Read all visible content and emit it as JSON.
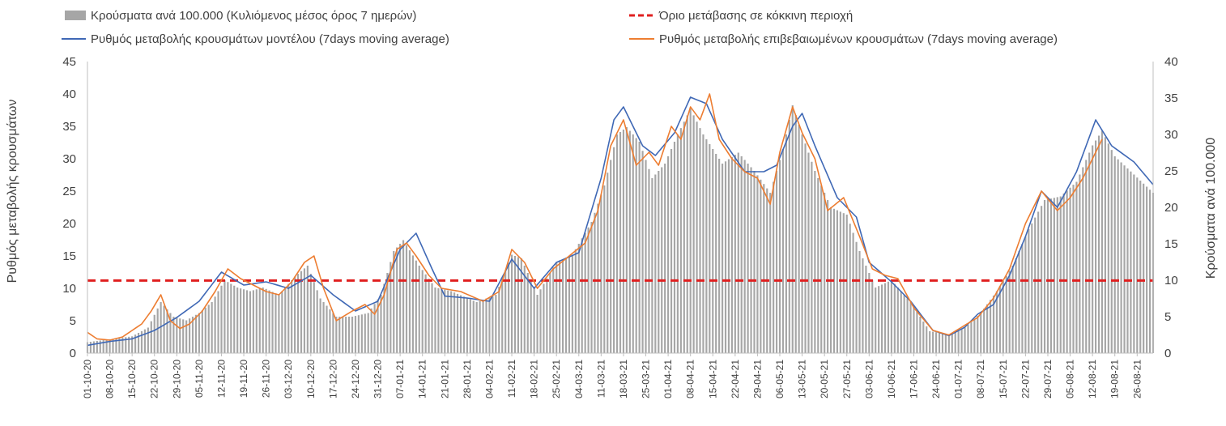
{
  "chart_data": {
    "type": "bar+line",
    "title": "",
    "ylabel_left": "Ρυθμός μεταβολής κρουσμάτων",
    "ylabel_right": "Κρούσματα ανά 100.000",
    "ylim_left": [
      0,
      45
    ],
    "yticks_left": [
      "0",
      "5",
      "10",
      "15",
      "20",
      "25",
      "30",
      "35",
      "40",
      "45"
    ],
    "ylim_right": [
      0,
      40
    ],
    "yticks_right": [
      "0",
      "5",
      "10",
      "15",
      "20",
      "25",
      "30",
      "35",
      "40"
    ],
    "x_tick_labels": [
      "01-10-20",
      "08-10-20",
      "15-10-20",
      "22-10-20",
      "29-10-20",
      "05-11-20",
      "12-11-20",
      "19-11-20",
      "26-11-20",
      "03-12-20",
      "10-12-20",
      "17-12-20",
      "24-12-20",
      "31-12-20",
      "07-01-21",
      "14-01-21",
      "21-01-21",
      "28-01-21",
      "04-02-21",
      "11-02-21",
      "18-02-21",
      "25-02-21",
      "04-03-21",
      "11-03-21",
      "18-03-21",
      "25-03-21",
      "01-04-21",
      "08-04-21",
      "15-04-21",
      "22-04-21",
      "29-04-21",
      "06-05-21",
      "13-05-21",
      "20-05-21",
      "27-05-21",
      "03-06-21",
      "10-06-21",
      "17-06-21",
      "24-06-21",
      "01-07-21",
      "08-07-21",
      "15-07-21",
      "22-07-21",
      "29-07-21",
      "05-08-21",
      "12-08-21",
      "19-08-21",
      "26-08-21"
    ],
    "x_start": "2020-10-01",
    "x_end": "2021-08-31",
    "grid": false,
    "legend_position": "top",
    "threshold": {
      "name": "Όριο μετάβασης σε κόκκινη περιοχή",
      "value_left_axis": 11.2,
      "color": "#e02020"
    },
    "series": [
      {
        "name": "Κρούσματα ανά 100.000 (Κυλιόμενος μέσος όρος 7 ημερών)",
        "kind": "bar",
        "axis": "right",
        "color": "#a6a6a6",
        "keypoints": [
          [
            "2020-10-01",
            1.5
          ],
          [
            "2020-10-08",
            1.9
          ],
          [
            "2020-10-15",
            2.3
          ],
          [
            "2020-10-20",
            3.5
          ],
          [
            "2020-10-24",
            7.0
          ],
          [
            "2020-10-28",
            5.0
          ],
          [
            "2020-11-01",
            4.5
          ],
          [
            "2020-11-05",
            5.5
          ],
          [
            "2020-11-09",
            7.0
          ],
          [
            "2020-11-13",
            10.0
          ],
          [
            "2020-11-17",
            9.0
          ],
          [
            "2020-11-21",
            8.5
          ],
          [
            "2020-11-25",
            9.0
          ],
          [
            "2020-11-30",
            8.0
          ],
          [
            "2020-12-05",
            10.5
          ],
          [
            "2020-12-09",
            12.0
          ],
          [
            "2020-12-13",
            7.5
          ],
          [
            "2020-12-18",
            5.0
          ],
          [
            "2020-12-23",
            5.0
          ],
          [
            "2020-12-28",
            5.5
          ],
          [
            "2021-01-01",
            8.0
          ],
          [
            "2021-01-05",
            14.0
          ],
          [
            "2021-01-08",
            15.5
          ],
          [
            "2021-01-13",
            12.0
          ],
          [
            "2021-01-18",
            9.0
          ],
          [
            "2021-01-23",
            8.5
          ],
          [
            "2021-01-31",
            7.0
          ],
          [
            "2021-02-06",
            8.0
          ],
          [
            "2021-02-11",
            13.5
          ],
          [
            "2021-02-14",
            13.0
          ],
          [
            "2021-02-19",
            8.0
          ],
          [
            "2021-02-25",
            12.5
          ],
          [
            "2021-03-02",
            13.5
          ],
          [
            "2021-03-08",
            18.0
          ],
          [
            "2021-03-12",
            23.0
          ],
          [
            "2021-03-16",
            30.0
          ],
          [
            "2021-03-19",
            31.0
          ],
          [
            "2021-03-23",
            29.0
          ],
          [
            "2021-03-27",
            24.0
          ],
          [
            "2021-03-31",
            26.0
          ],
          [
            "2021-04-04",
            30.0
          ],
          [
            "2021-04-08",
            33.5
          ],
          [
            "2021-04-12",
            30.0
          ],
          [
            "2021-04-18",
            26.0
          ],
          [
            "2021-04-23",
            27.5
          ],
          [
            "2021-04-28",
            25.0
          ],
          [
            "2021-05-03",
            22.0
          ],
          [
            "2021-05-07",
            28.0
          ],
          [
            "2021-05-10",
            34.0
          ],
          [
            "2021-05-13",
            30.0
          ],
          [
            "2021-05-17",
            25.0
          ],
          [
            "2021-05-22",
            20.0
          ],
          [
            "2021-05-27",
            19.0
          ],
          [
            "2021-05-31",
            14.0
          ],
          [
            "2021-06-05",
            9.0
          ],
          [
            "2021-06-10",
            10.0
          ],
          [
            "2021-06-16",
            7.0
          ],
          [
            "2021-06-22",
            3.0
          ],
          [
            "2021-06-28",
            2.6
          ],
          [
            "2021-07-03",
            3.5
          ],
          [
            "2021-07-08",
            5.5
          ],
          [
            "2021-07-13",
            8.5
          ],
          [
            "2021-07-18",
            12.0
          ],
          [
            "2021-07-23",
            17.0
          ],
          [
            "2021-07-28",
            21.0
          ],
          [
            "2021-08-02",
            21.5
          ],
          [
            "2021-08-07",
            23.5
          ],
          [
            "2021-08-12",
            28.5
          ],
          [
            "2021-08-15",
            30.5
          ],
          [
            "2021-08-19",
            27.0
          ],
          [
            "2021-08-25",
            24.5
          ],
          [
            "2021-08-31",
            22.0
          ]
        ]
      },
      {
        "name": "Ρυθμός μεταβολής κρουσμάτων μοντέλου (7days moving average)",
        "kind": "line",
        "axis": "left",
        "color": "#3f68b5",
        "keypoints": [
          [
            "2020-10-01",
            1.2
          ],
          [
            "2020-10-08",
            1.8
          ],
          [
            "2020-10-15",
            2.2
          ],
          [
            "2020-10-22",
            3.5
          ],
          [
            "2020-10-29",
            5.5
          ],
          [
            "2020-11-05",
            8.0
          ],
          [
            "2020-11-12",
            12.5
          ],
          [
            "2020-11-19",
            10.5
          ],
          [
            "2020-11-26",
            11.0
          ],
          [
            "2020-12-03",
            10.0
          ],
          [
            "2020-12-10",
            12.0
          ],
          [
            "2020-12-17",
            9.0
          ],
          [
            "2020-12-24",
            6.5
          ],
          [
            "2020-12-31",
            8.0
          ],
          [
            "2021-01-07",
            16.0
          ],
          [
            "2021-01-12",
            18.5
          ],
          [
            "2021-01-17",
            13.0
          ],
          [
            "2021-01-21",
            8.8
          ],
          [
            "2021-01-28",
            8.5
          ],
          [
            "2021-02-04",
            8.0
          ],
          [
            "2021-02-11",
            14.5
          ],
          [
            "2021-02-18",
            10.0
          ],
          [
            "2021-02-25",
            14.0
          ],
          [
            "2021-03-04",
            15.5
          ],
          [
            "2021-03-11",
            27.0
          ],
          [
            "2021-03-15",
            36.0
          ],
          [
            "2021-03-18",
            38.0
          ],
          [
            "2021-03-24",
            32.0
          ],
          [
            "2021-03-28",
            30.5
          ],
          [
            "2021-04-03",
            34.0
          ],
          [
            "2021-04-08",
            39.5
          ],
          [
            "2021-04-13",
            38.5
          ],
          [
            "2021-04-18",
            33.0
          ],
          [
            "2021-04-25",
            28.0
          ],
          [
            "2021-05-01",
            28.0
          ],
          [
            "2021-05-05",
            29.0
          ],
          [
            "2021-05-10",
            35.0
          ],
          [
            "2021-05-13",
            37.0
          ],
          [
            "2021-05-17",
            32.0
          ],
          [
            "2021-05-24",
            24.0
          ],
          [
            "2021-05-30",
            21.0
          ],
          [
            "2021-06-03",
            14.0
          ],
          [
            "2021-06-10",
            11.0
          ],
          [
            "2021-06-16",
            8.0
          ],
          [
            "2021-06-23",
            3.5
          ],
          [
            "2021-06-28",
            2.7
          ],
          [
            "2021-07-03",
            4.0
          ],
          [
            "2021-07-07",
            6.0
          ],
          [
            "2021-07-12",
            7.5
          ],
          [
            "2021-07-17",
            12.0
          ],
          [
            "2021-07-22",
            18.0
          ],
          [
            "2021-07-27",
            25.0
          ],
          [
            "2021-08-01",
            22.5
          ],
          [
            "2021-08-07",
            28.0
          ],
          [
            "2021-08-13",
            36.0
          ],
          [
            "2021-08-18",
            32.0
          ],
          [
            "2021-08-25",
            29.5
          ],
          [
            "2021-08-31",
            26.0
          ]
        ]
      },
      {
        "name": "Ρυθμός μεταβολής επιβεβαιωμένων κρουσμάτων (7days moving average)",
        "kind": "line",
        "axis": "left",
        "color": "#ed7d31",
        "keypoints": [
          [
            "2020-10-01",
            3.2
          ],
          [
            "2020-10-04",
            2.2
          ],
          [
            "2020-10-08",
            2.0
          ],
          [
            "2020-10-12",
            2.5
          ],
          [
            "2020-10-15",
            3.5
          ],
          [
            "2020-10-18",
            4.5
          ],
          [
            "2020-10-21",
            6.5
          ],
          [
            "2020-10-24",
            9.0
          ],
          [
            "2020-10-27",
            5.0
          ],
          [
            "2020-10-30",
            3.8
          ],
          [
            "2020-11-02",
            4.5
          ],
          [
            "2020-11-06",
            6.5
          ],
          [
            "2020-11-10",
            9.5
          ],
          [
            "2020-11-14",
            13.0
          ],
          [
            "2020-11-18",
            11.5
          ],
          [
            "2020-11-22",
            10.5
          ],
          [
            "2020-11-26",
            9.5
          ],
          [
            "2020-11-30",
            9.0
          ],
          [
            "2020-12-04",
            11.0
          ],
          [
            "2020-12-08",
            14.0
          ],
          [
            "2020-12-11",
            15.0
          ],
          [
            "2020-12-14",
            10.0
          ],
          [
            "2020-12-18",
            5.0
          ],
          [
            "2020-12-23",
            6.5
          ],
          [
            "2020-12-27",
            7.5
          ],
          [
            "2020-12-30",
            6.0
          ],
          [
            "2021-01-02",
            9.0
          ],
          [
            "2021-01-06",
            16.0
          ],
          [
            "2021-01-09",
            17.0
          ],
          [
            "2021-01-12",
            15.0
          ],
          [
            "2021-01-16",
            12.0
          ],
          [
            "2021-01-20",
            10.0
          ],
          [
            "2021-01-26",
            9.5
          ],
          [
            "2021-02-02",
            8.0
          ],
          [
            "2021-02-07",
            9.5
          ],
          [
            "2021-02-11",
            16.0
          ],
          [
            "2021-02-15",
            14.0
          ],
          [
            "2021-02-19",
            10.0
          ],
          [
            "2021-02-24",
            13.0
          ],
          [
            "2021-03-01",
            15.0
          ],
          [
            "2021-03-06",
            17.0
          ],
          [
            "2021-03-10",
            22.0
          ],
          [
            "2021-03-14",
            32.0
          ],
          [
            "2021-03-18",
            36.0
          ],
          [
            "2021-03-22",
            29.0
          ],
          [
            "2021-03-26",
            31.0
          ],
          [
            "2021-03-29",
            29.0
          ],
          [
            "2021-04-02",
            35.0
          ],
          [
            "2021-04-05",
            33.0
          ],
          [
            "2021-04-08",
            38.0
          ],
          [
            "2021-04-11",
            36.0
          ],
          [
            "2021-04-14",
            40.0
          ],
          [
            "2021-04-17",
            33.0
          ],
          [
            "2021-04-21",
            30.0
          ],
          [
            "2021-04-25",
            28.0
          ],
          [
            "2021-04-29",
            27.0
          ],
          [
            "2021-05-03",
            23.0
          ],
          [
            "2021-05-06",
            31.0
          ],
          [
            "2021-05-10",
            38.0
          ],
          [
            "2021-05-13",
            34.0
          ],
          [
            "2021-05-17",
            30.0
          ],
          [
            "2021-05-21",
            22.0
          ],
          [
            "2021-05-26",
            24.0
          ],
          [
            "2021-05-31",
            18.0
          ],
          [
            "2021-06-04",
            13.0
          ],
          [
            "2021-06-08",
            12.0
          ],
          [
            "2021-06-12",
            11.5
          ],
          [
            "2021-06-17",
            7.0
          ],
          [
            "2021-06-23",
            3.5
          ],
          [
            "2021-06-28",
            2.8
          ],
          [
            "2021-07-02",
            4.0
          ],
          [
            "2021-07-07",
            5.5
          ],
          [
            "2021-07-12",
            8.5
          ],
          [
            "2021-07-17",
            13.0
          ],
          [
            "2021-07-22",
            20.0
          ],
          [
            "2021-07-27",
            25.0
          ],
          [
            "2021-08-01",
            22.0
          ],
          [
            "2021-08-05",
            24.0
          ],
          [
            "2021-08-09",
            27.0
          ],
          [
            "2021-08-12",
            30.0
          ],
          [
            "2021-08-15",
            33.0
          ]
        ]
      }
    ]
  }
}
